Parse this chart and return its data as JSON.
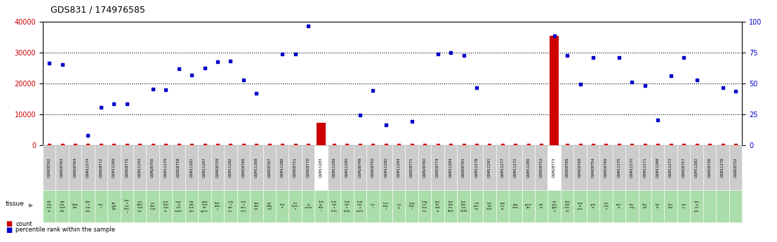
{
  "title": "GDS831 / 174976585",
  "samples": [
    "GSM28762",
    "GSM28763",
    "GSM28764",
    "GSM11274",
    "GSM28772",
    "GSM11269",
    "GSM28775",
    "GSM11293",
    "GSM28755",
    "GSM11279",
    "GSM28758",
    "GSM11281",
    "GSM11287",
    "GSM28759",
    "GSM11292",
    "GSM28766",
    "GSM11268",
    "GSM28767",
    "GSM11286",
    "GSM28751",
    "GSM28770",
    "GSM11283",
    "GSM11289",
    "GSM11280",
    "GSM28749",
    "GSM28750",
    "GSM11290",
    "GSM11294",
    "GSM28771",
    "GSM28760",
    "GSM28774",
    "GSM11284",
    "GSM28761",
    "GSM11278",
    "GSM11291",
    "GSM11277",
    "GSM11272",
    "GSM11285",
    "GSM28753",
    "GSM28773",
    "GSM28765",
    "GSM28768",
    "GSM28754",
    "GSM28769",
    "GSM11275",
    "GSM11270",
    "GSM11271",
    "GSM11288",
    "GSM11273",
    "GSM28757",
    "GSM11282",
    "GSM28756",
    "GSM11276",
    "GSM28752"
  ],
  "tissues": [
    "adr\nena\ncort\nex",
    "adr\nena\nmed\nulla",
    "blad\nder",
    "bon\ne\nmar\nrow",
    "brai\nn",
    "am\nygd\nala",
    "brai\nn\nnuc\nfeta\nl",
    "cau\ndate\nnucl\neus",
    "cer\nebe\nllum",
    "cere\nbral\ncort\nex",
    "corp\nus\ncall\nosum",
    "hip\npoc\ncam\npus",
    "post\ncent\nral\ngyrus",
    "thal\namu\ns",
    "colo\nn\ndes\nces",
    "colo\nn\ntran\nsver",
    "duo\nden\num",
    "epi\ndidy\nmis",
    "hea\nrt",
    "leu\nkemi\na",
    "jej\nunum",
    "kidn\ney\nfeta\nl",
    "leuk\nemi\na\nchro",
    "leuk\nemi\na\nlymp",
    "leuk\nemi\na\nprom",
    "live\nr",
    "liver\nfeta\nl",
    "lun\ng",
    "lung\nfeta\nl",
    "lung\ncar\ncino\nma",
    "lym\nph\nnod\nes",
    "lym\npho\nma\nBurk",
    "lym\npho\nma\nG336",
    "mel\nano\nma",
    "mis\nlab\neled",
    "pan\ncre\nas",
    "plac\nenta",
    "prost\nate",
    "reti\nna",
    "sali\nvary\nglan\nd",
    "skel\netal\nmus\ncle",
    "spin\nal\ncord",
    "sple\nen",
    "sto\nmac\nh",
    "test\nes",
    "thy\nmus",
    "thyr\noid",
    "ton\nsil",
    "trac\nhea",
    "uter\nus",
    "uter\nus\ncor\npus"
  ],
  "percentile_values": [
    26600,
    26100,
    null,
    3200,
    12200,
    13500,
    13300,
    null,
    18100,
    18000,
    24800,
    22700,
    25000,
    27100,
    27200,
    21200,
    16800,
    null,
    29500,
    29500,
    38700,
    null,
    null,
    null,
    9700,
    17800,
    6500,
    null,
    7700,
    null,
    29500,
    30000,
    29000,
    18600,
    null,
    null,
    null,
    null,
    null,
    35500,
    29000,
    19700,
    28500,
    null,
    28500,
    20500,
    19400,
    8200,
    22500,
    28500,
    21200,
    null,
    18700,
    17400
  ],
  "count_values": [
    200,
    200,
    200,
    200,
    200,
    200,
    200,
    200,
    200,
    200,
    200,
    200,
    200,
    200,
    200,
    200,
    200,
    200,
    200,
    200,
    200,
    7200,
    200,
    200,
    200,
    200,
    200,
    200,
    200,
    200,
    200,
    200,
    200,
    200,
    200,
    200,
    200,
    200,
    200,
    35500,
    200,
    200,
    200,
    200,
    200,
    200,
    200,
    200,
    200,
    200,
    200,
    200,
    200,
    200
  ],
  "ylim_left": [
    0,
    40000
  ],
  "ylim_right": [
    0,
    100
  ],
  "yticks_left": [
    0,
    10000,
    20000,
    30000,
    40000
  ],
  "yticks_right": [
    0,
    25,
    50,
    75,
    100
  ],
  "bg_color": "#ffffff",
  "plot_bg": "#ffffff",
  "dot_color": "#0000cc",
  "count_color": "#cc0000",
  "bar_color": "#cc0000",
  "grid_color": "#000000",
  "left_tick_color": "#cc0000",
  "right_tick_color": "#0000cc",
  "tissue_bg": "#aaddaa",
  "sample_bg": "#cccccc",
  "sample_bg_white": "#ffffff",
  "white_sample_indices": [
    21,
    39
  ]
}
